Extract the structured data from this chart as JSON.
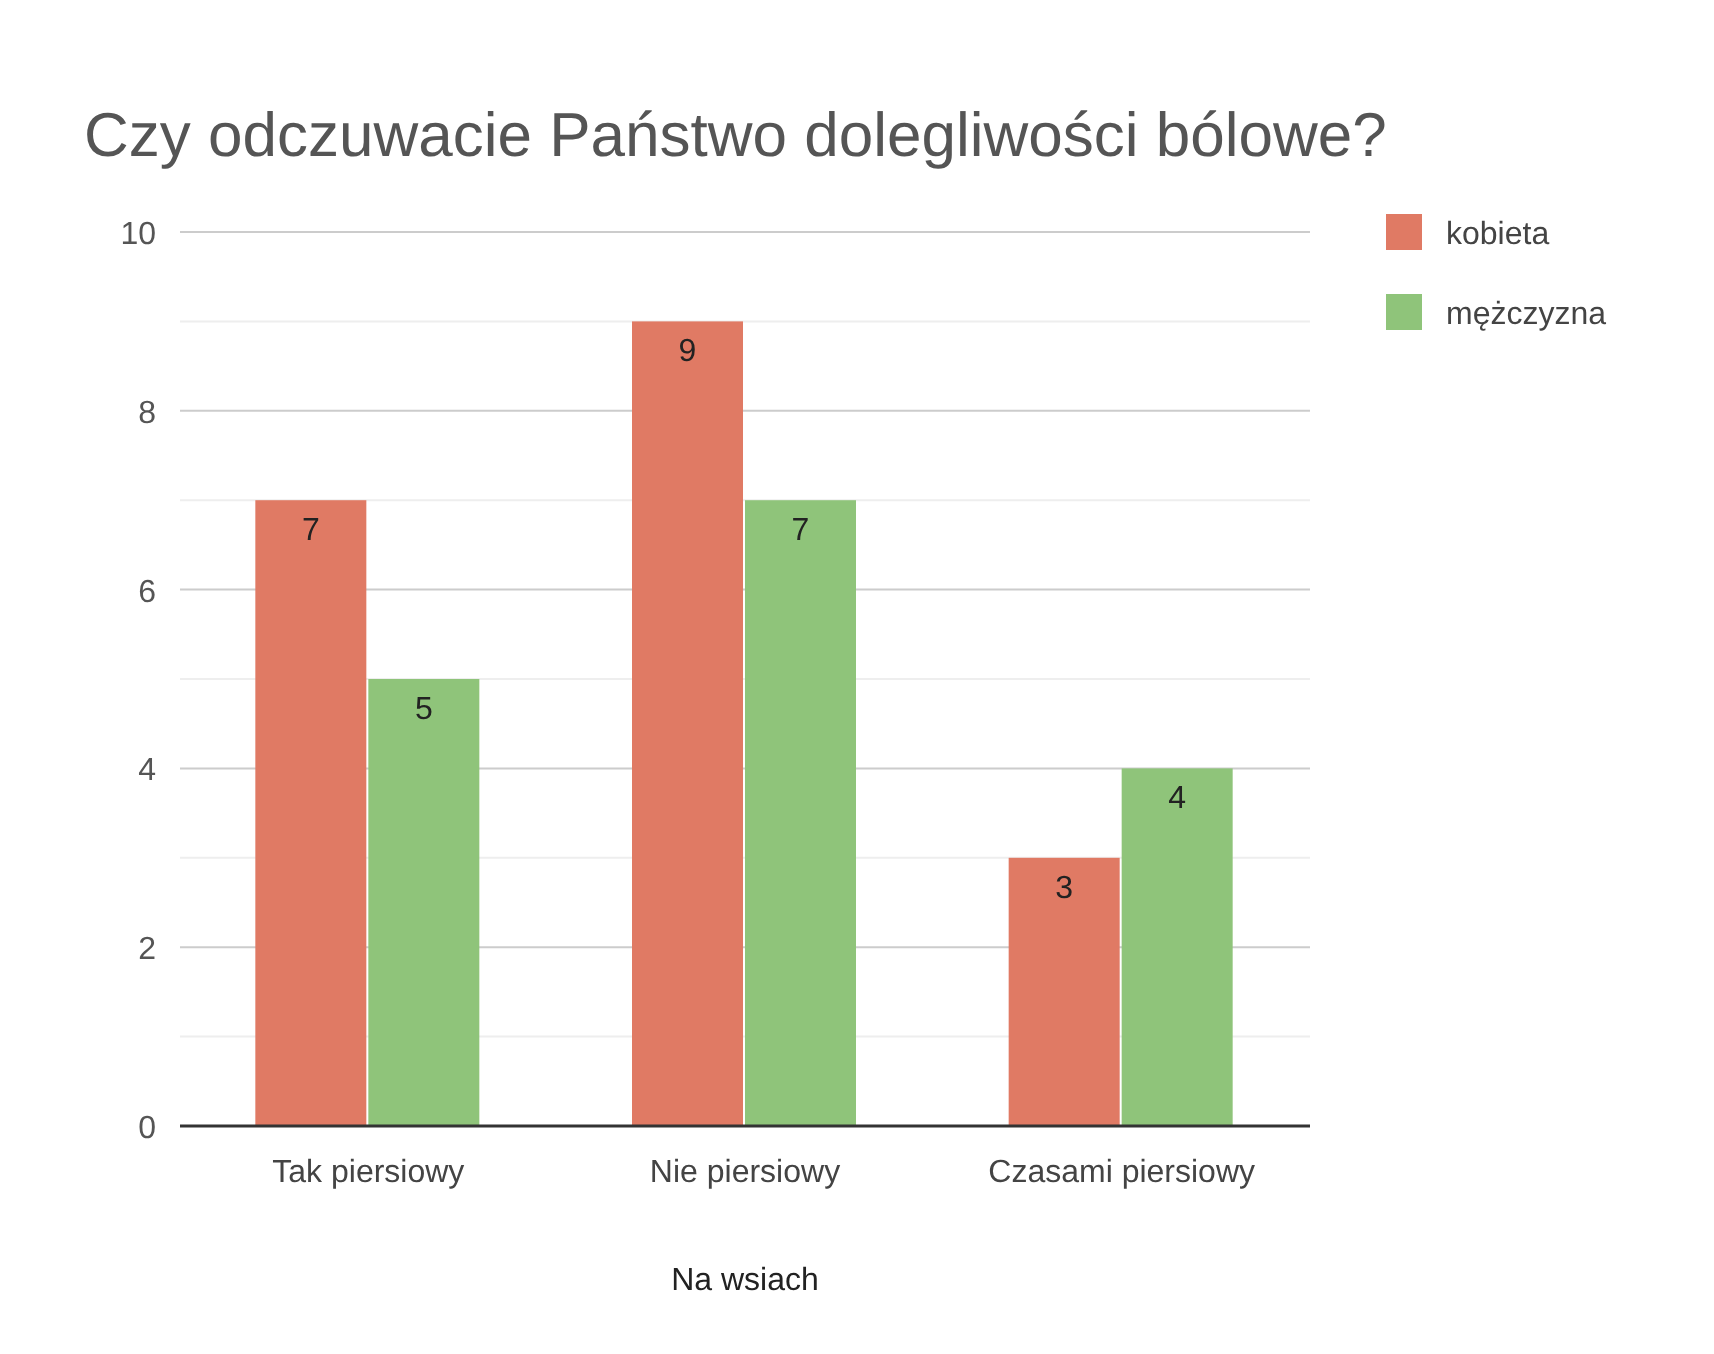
{
  "chart_data": {
    "type": "bar",
    "title": "Czy odczuwacie Państwo dolegliwości bólowe?",
    "xlabel": "Na wsiach",
    "categories": [
      "Tak piersiowy",
      "Nie piersiowy",
      "Czasami piersiowy"
    ],
    "series": [
      {
        "name": "kobieta",
        "color": "#e07a64",
        "values": [
          7,
          9,
          3
        ]
      },
      {
        "name": "mężczyzna",
        "color": "#8fc47a",
        "values": [
          5,
          7,
          4
        ]
      }
    ],
    "ylim": [
      0,
      10
    ],
    "yticks": [
      0,
      {
        "value": 1,
        "label": null
      },
      2,
      {
        "value": 3,
        "label": null
      },
      4,
      {
        "value": 5,
        "label": null
      },
      6,
      {
        "value": 7,
        "label": null
      },
      8,
      {
        "value": 9,
        "label": null
      },
      10
    ],
    "grid": "y",
    "legend": "top right",
    "data_labels": true
  }
}
